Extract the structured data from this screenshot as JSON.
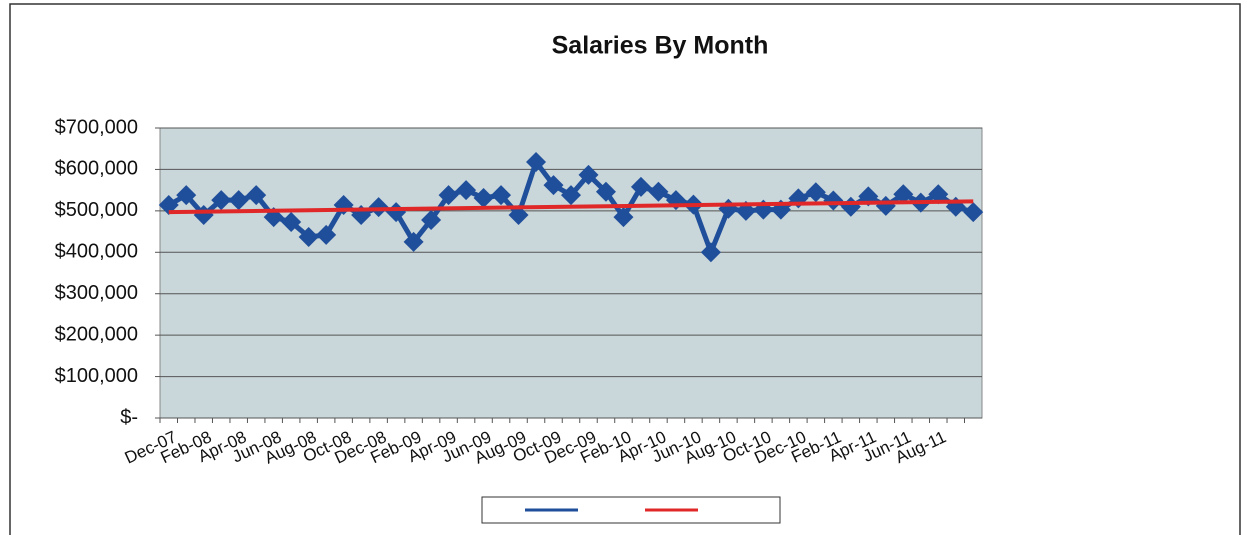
{
  "chart_data": {
    "type": "line",
    "title": "Salaries By Month",
    "categories": [
      "Dec-07",
      null,
      "Feb-08",
      null,
      "Apr-08",
      null,
      "Jun-08",
      null,
      "Aug-08",
      null,
      "Oct-08",
      null,
      "Dec-08",
      null,
      "Feb-09",
      null,
      "Apr-09",
      null,
      "Jun-09",
      null,
      "Aug-09",
      null,
      "Oct-09",
      null,
      "Dec-09",
      null,
      "Feb-10",
      null,
      "Apr-10",
      null,
      "Jun-10",
      null,
      "Aug-10",
      null,
      "Oct-10",
      null,
      "Dec-10",
      null,
      "Feb-11",
      null,
      "Apr-11",
      null,
      "Jun-11",
      null,
      "Aug-11",
      null,
      null
    ],
    "series": [
      {
        "color": "#1f4e9a",
        "values": [
          514000,
          538000,
          490000,
          526000,
          526000,
          538000,
          485000,
          473000,
          437000,
          442000,
          514000,
          490000,
          509000,
          497000,
          425000,
          478000,
          538000,
          550000,
          531000,
          538000,
          490000,
          618000,
          562000,
          538000,
          587000,
          546000,
          485000,
          558000,
          546000,
          526000,
          515000,
          400000,
          505000,
          500000,
          503000,
          503000,
          530000,
          545000,
          525000,
          510000,
          535000,
          512000,
          540000,
          520000,
          540000,
          510000,
          497000
        ]
      },
      {
        "color": "#e02828",
        "trend": [
          497000,
          523000
        ]
      }
    ],
    "ylim": [
      0,
      700000
    ],
    "yticks": [
      {
        "value": 0,
        "label": "$-"
      },
      {
        "value": 100000,
        "label": "$100,000"
      },
      {
        "value": 200000,
        "label": "$200,000"
      },
      {
        "value": 300000,
        "label": "$300,000"
      },
      {
        "value": 400000,
        "label": "$400,000"
      },
      {
        "value": 500000,
        "label": "$500,000"
      },
      {
        "value": 600000,
        "label": "$600,000"
      },
      {
        "value": 700000,
        "label": "$700,000"
      }
    ],
    "grid": true
  }
}
